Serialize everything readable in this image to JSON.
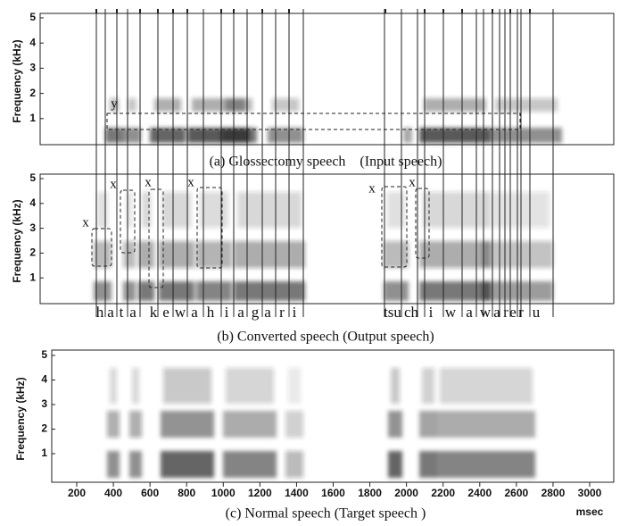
{
  "panels": [
    {
      "caption": "(a) Glossectomy speech    (Input speech)",
      "ylabel": "Frequency (kHz)",
      "yticks": [
        "5",
        "4",
        "3",
        "2",
        "1"
      ]
    },
    {
      "caption": "(b) Converted speech (Output speech)",
      "ylabel": "Frequency (kHz)",
      "yticks": [
        "5",
        "4",
        "3",
        "2",
        "1"
      ]
    },
    {
      "caption": "(c) Normal speech (Target speech )",
      "ylabel": "Frequency (kHz)",
      "yticks": [
        "5",
        "4",
        "3",
        "2",
        "1"
      ]
    }
  ],
  "phonemes": [
    "h",
    "a",
    "t",
    "a",
    "k",
    "e",
    "w",
    "a",
    "h",
    "i",
    "a",
    "g",
    "a",
    "r",
    "i",
    "tsu",
    "ch",
    "i",
    "w",
    "a",
    "w",
    "a",
    "r",
    "e",
    "r",
    "u"
  ],
  "annotations": {
    "y": "y",
    "x": [
      "x",
      "x",
      "x",
      "x",
      "x",
      "x"
    ]
  },
  "xaxis": {
    "ticks": [
      "200",
      "400",
      "600",
      "800",
      "1000",
      "1200",
      "1400",
      "1600",
      "1800",
      "2000",
      "2200",
      "2400",
      "2600",
      "2800",
      "3000"
    ],
    "unit": "msec"
  }
}
